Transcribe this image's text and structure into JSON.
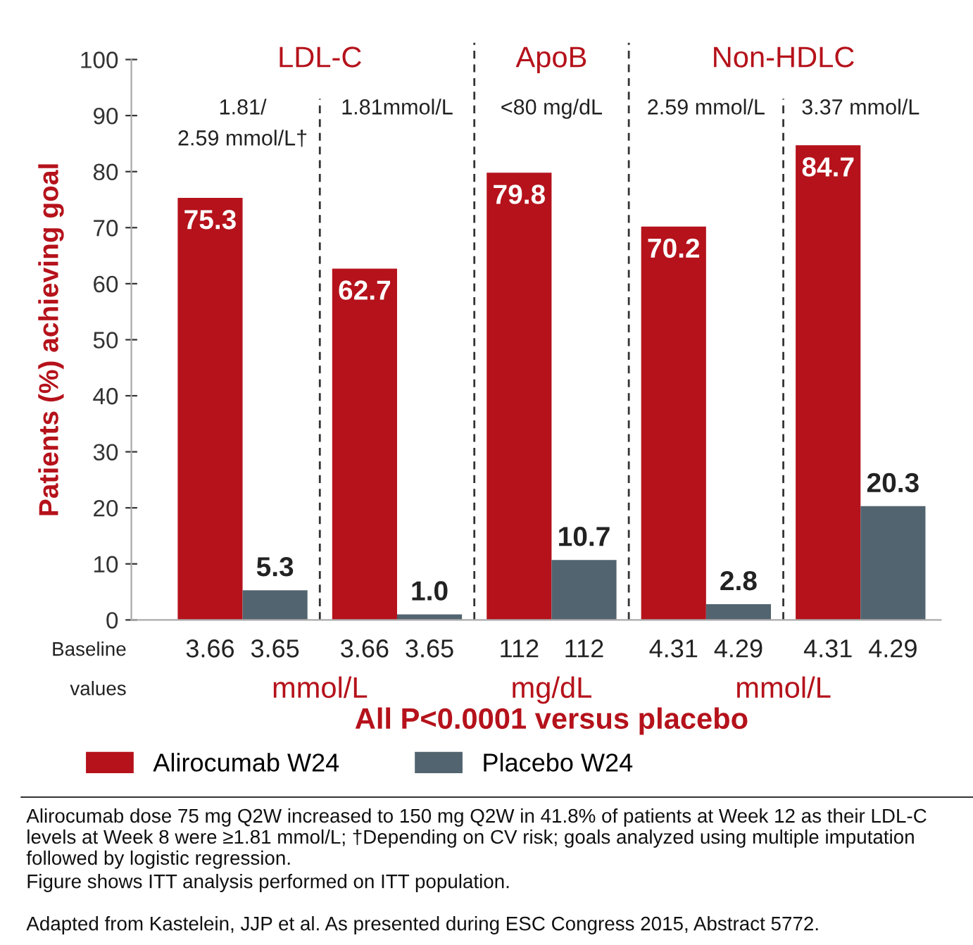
{
  "chart_data": {
    "type": "bar",
    "ylabel": "Patients (%) achieving goal",
    "categories": [
      "1.81/\n2.59 mmol/L†",
      "1.81mmol/L",
      "<80 mg/dL",
      "2.59 mmol/L",
      "3.37 mmol/L"
    ],
    "series": [
      {
        "name": "Alirocumab W24",
        "color": "#b5121b",
        "values": [
          75.3,
          62.7,
          79.8,
          70.2,
          84.7
        ],
        "value_labels": [
          "75.3",
          "62.7",
          "79.8",
          "70.2",
          "84.7"
        ]
      },
      {
        "name": "Placebo W24",
        "color": "#52646f",
        "values": [
          5.3,
          1.0,
          10.7,
          2.8,
          20.3
        ],
        "value_labels": [
          "5.3",
          "1.0",
          "10.7",
          "2.8",
          "20.3"
        ]
      }
    ],
    "ylim": [
      0,
      100
    ],
    "yticks": [
      0,
      10,
      20,
      30,
      40,
      50,
      60,
      70,
      80,
      90,
      100
    ],
    "grid": false,
    "legend": "bottom",
    "annotations": [
      "LDL-C",
      "ApoB",
      "Non-HDLC",
      "Baseline",
      "values",
      "3.66",
      "3.65",
      "3.66",
      "3.65",
      "112",
      "112",
      "4.31",
      "4.29",
      "4.31",
      "4.29",
      "mmol/L",
      "mg/dL",
      "mmol/L",
      "All P<0.0001 versus placebo",
      "Alirocumab dose 75 mg Q2W increased to 150 mg Q2W in 41.8% of patients at Week 12 as their LDL-C levels at Week 8 were ≥1.81 mmol/L; †Depending on CV risk; goals analyzed using multiple imputation followed by logistic regression.",
      "Figure shows ITT analysis performed on ITT population.",
      "Adapted from Kastelein, JJP et al. As presented during ESC Congress 2015, Abstract 5772."
    ]
  }
}
